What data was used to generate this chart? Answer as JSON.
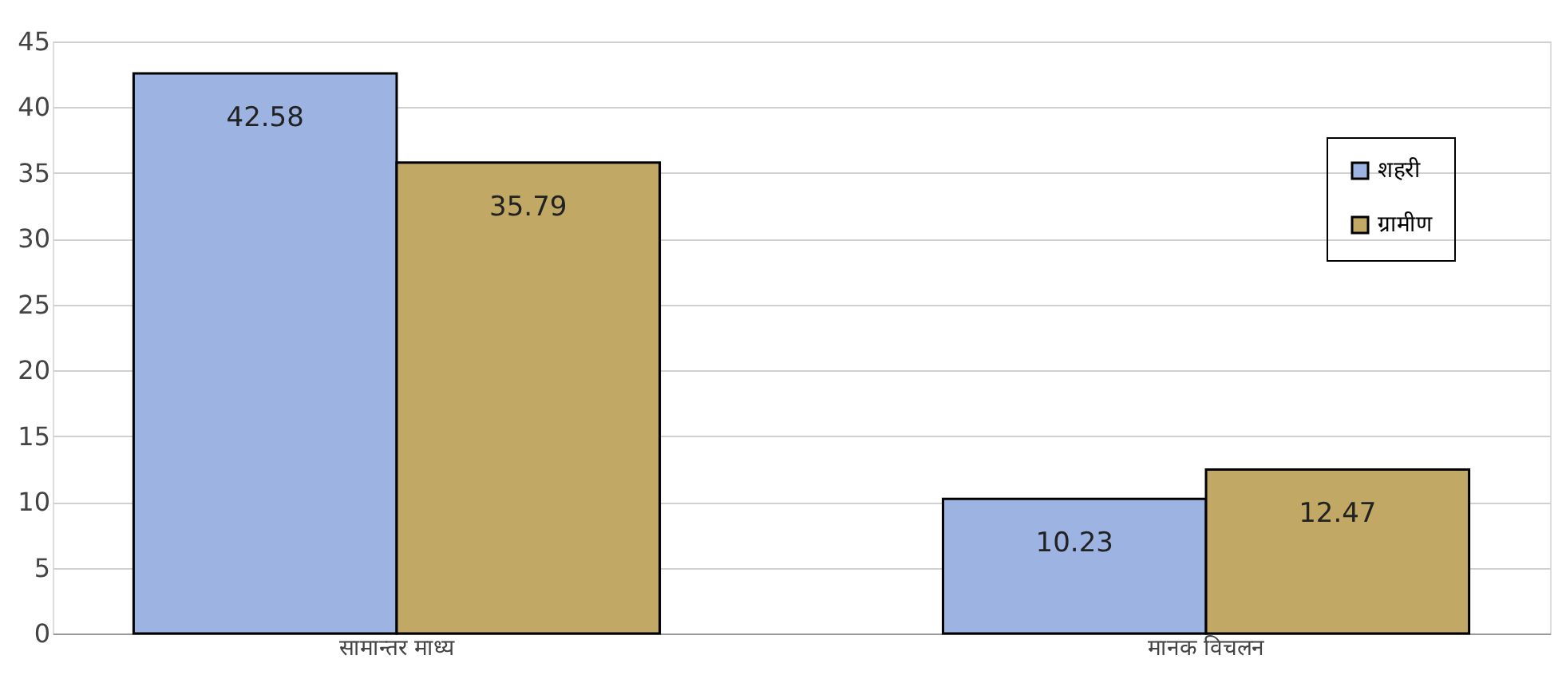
{
  "chart_data": {
    "type": "bar",
    "categories": [
      "सामान्तर माध्य",
      "मानक विचलन"
    ],
    "series": [
      {
        "name": "शहरी",
        "color": "#9db4e3",
        "values": [
          42.58,
          10.23
        ]
      },
      {
        "name": "ग्रामीण",
        "color": "#c2a865",
        "values": [
          35.79,
          12.47
        ]
      }
    ],
    "ylim": [
      0,
      45
    ],
    "yticks": [
      0,
      5,
      10,
      15,
      20,
      25,
      30,
      35,
      40,
      45
    ],
    "grid": "y",
    "legend": "top right",
    "data_labels": true
  }
}
